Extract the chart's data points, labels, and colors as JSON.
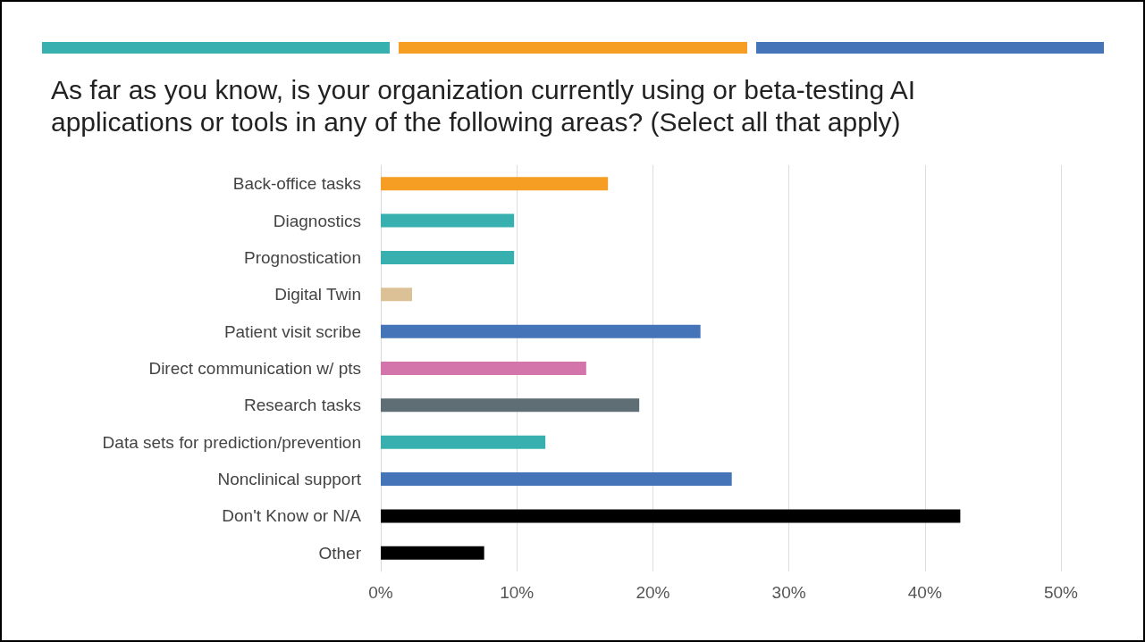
{
  "chart_data": {
    "type": "bar",
    "orientation": "horizontal",
    "title": "As far as you know, is your organization currently using or beta-testing AI applications or tools in any of the following areas? (Select all that apply)",
    "categories": [
      "Back-office tasks",
      "Diagnostics",
      "Prognostication",
      "Digital Twin",
      "Patient visit scribe",
      "Direct communication w/ pts",
      "Research tasks",
      "Data sets for prediction/prevention",
      "Nonclinical support",
      "Don't Know or N/A",
      "Other"
    ],
    "values": [
      16.7,
      9.8,
      9.8,
      2.3,
      23.5,
      15.1,
      19.0,
      12.1,
      25.8,
      42.6,
      7.6
    ],
    "colors": [
      "#f59e23",
      "#38b0b0",
      "#38b0b0",
      "#dcc197",
      "#4574b8",
      "#d375ab",
      "#5f6e74",
      "#38b0b0",
      "#4574b8",
      "#000000",
      "#000000"
    ],
    "xlim": [
      0,
      50
    ],
    "xticks": [
      {
        "value": 0,
        "label": "0%"
      },
      {
        "value": 10,
        "label": "10%"
      },
      {
        "value": 20,
        "label": "20%"
      },
      {
        "value": 30,
        "label": "30%"
      },
      {
        "value": 40,
        "label": "40%"
      },
      {
        "value": 50,
        "label": "50%"
      }
    ],
    "grid": "x"
  }
}
